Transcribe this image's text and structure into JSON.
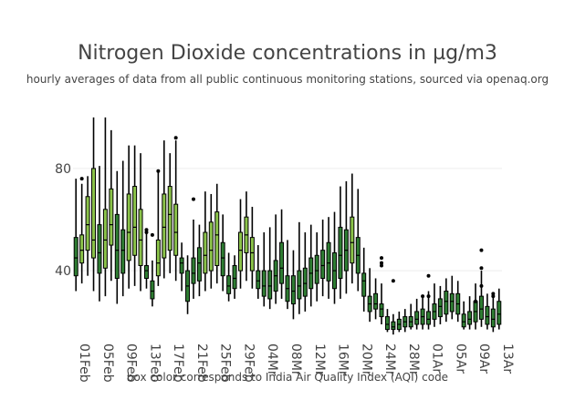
{
  "chart_data": {
    "type": "box",
    "title": "Nitrogen Dioxide concentrations in µg/m3",
    "subtitle": "hourly averages of data from all public continuous monitoring stations, sourced via openaq.org",
    "xlabel": "box color corresponds to India Air Quality Index (AQI) code",
    "ylabel": "",
    "ylim": [
      14,
      106
    ],
    "yticks": [
      40,
      80
    ],
    "xticks": [
      "01Feb",
      "05Feb",
      "09Feb",
      "13Feb",
      "17Feb",
      "21Feb",
      "25Feb",
      "29Feb",
      "04Mar",
      "08Mar",
      "12Mar",
      "16Mar",
      "20Mar",
      "24Mar",
      "28Mar",
      "01Apr",
      "05Apr",
      "09Apr",
      "13Apr"
    ],
    "tick_labels": [
      "01Feb",
      "05Feb",
      "09Feb",
      "13Feb",
      "17Feb",
      "21Feb",
      "25Feb",
      "29Feb",
      "04Mr",
      "08Mr",
      "12Mr",
      "16Mr",
      "20Mr",
      "24Mr",
      "28Mr",
      "01Ar",
      "05Ar",
      "09Ar",
      "13Ar"
    ],
    "colors": {
      "good": "#2e7d32",
      "satisfactory": "#8bc34a",
      "whisker": "#000000",
      "grid": "#eeeeee"
    },
    "series": [
      {
        "date": "01Feb",
        "min": 32,
        "q1": 38,
        "median": 45,
        "q3": 53,
        "max": 76,
        "aqi": "good"
      },
      {
        "date": "02Feb",
        "min": 35,
        "q1": 43,
        "median": 48,
        "q3": 54,
        "max": 74,
        "aqi": "satisfactory"
      },
      {
        "date": "03Feb",
        "min": 38,
        "q1": 48,
        "median": 58,
        "q3": 69,
        "max": 77,
        "aqi": "satisfactory"
      },
      {
        "date": "04Feb",
        "min": 32,
        "q1": 45,
        "median": 52,
        "q3": 80,
        "max": 100,
        "aqi": "satisfactory"
      },
      {
        "date": "05Feb",
        "min": 28,
        "q1": 39,
        "median": 47,
        "q3": 58,
        "max": 81,
        "aqi": "good"
      },
      {
        "date": "06Feb",
        "min": 30,
        "q1": 41,
        "median": 52,
        "q3": 64,
        "max": 100,
        "aqi": "satisfactory"
      },
      {
        "date": "07Feb",
        "min": 36,
        "q1": 50,
        "median": 58,
        "q3": 72,
        "max": 95,
        "aqi": "satisfactory"
      },
      {
        "date": "08Feb",
        "min": 27,
        "q1": 37,
        "median": 48,
        "q3": 62,
        "max": 79,
        "aqi": "good"
      },
      {
        "date": "09Feb",
        "min": 30,
        "q1": 39,
        "median": 48,
        "q3": 56,
        "max": 83,
        "aqi": "good"
      },
      {
        "date": "10Feb",
        "min": 33,
        "q1": 44,
        "median": 55,
        "q3": 70,
        "max": 89,
        "aqi": "satisfactory"
      },
      {
        "date": "11Feb",
        "min": 34,
        "q1": 46,
        "median": 57,
        "q3": 73,
        "max": 89,
        "aqi": "satisfactory"
      },
      {
        "date": "12Feb",
        "min": 32,
        "q1": 42,
        "median": 52,
        "q3": 64,
        "max": 86,
        "aqi": "satisfactory"
      },
      {
        "date": "13Feb",
        "min": 33,
        "q1": 37,
        "median": 40,
        "q3": 42,
        "max": 55,
        "aqi": "good"
      },
      {
        "date": "14Feb",
        "min": 26,
        "q1": 29,
        "median": 32,
        "q3": 36,
        "max": 44,
        "aqi": "good"
      },
      {
        "date": "15Feb",
        "min": 34,
        "q1": 38,
        "median": 43,
        "q3": 52,
        "max": 79,
        "aqi": "satisfactory"
      },
      {
        "date": "16Feb",
        "min": 37,
        "q1": 45,
        "median": 57,
        "q3": 70,
        "max": 91,
        "aqi": "satisfactory"
      },
      {
        "date": "17Feb",
        "min": 39,
        "q1": 48,
        "median": 62,
        "q3": 73,
        "max": 86,
        "aqi": "satisfactory"
      },
      {
        "date": "18Feb",
        "min": 36,
        "q1": 46,
        "median": 55,
        "q3": 66,
        "max": 91,
        "aqi": "satisfactory"
      },
      {
        "date": "19Feb",
        "min": 32,
        "q1": 39,
        "median": 43,
        "q3": 45,
        "max": 51,
        "aqi": "good"
      },
      {
        "date": "20Feb",
        "min": 23,
        "q1": 28,
        "median": 34,
        "q3": 40,
        "max": 46,
        "aqi": "good"
      },
      {
        "date": "21Feb",
        "min": 29,
        "q1": 35,
        "median": 39,
        "q3": 45,
        "max": 60,
        "aqi": "good"
      },
      {
        "date": "22Feb",
        "min": 30,
        "q1": 36,
        "median": 43,
        "q3": 49,
        "max": 58,
        "aqi": "good"
      },
      {
        "date": "23Feb",
        "min": 32,
        "q1": 39,
        "median": 46,
        "q3": 55,
        "max": 71,
        "aqi": "satisfactory"
      },
      {
        "date": "24Feb",
        "min": 33,
        "q1": 40,
        "median": 48,
        "q3": 59,
        "max": 70,
        "aqi": "satisfactory"
      },
      {
        "date": "25Feb",
        "min": 35,
        "q1": 42,
        "median": 54,
        "q3": 63,
        "max": 74,
        "aqi": "satisfactory"
      },
      {
        "date": "26Feb",
        "min": 32,
        "q1": 38,
        "median": 45,
        "q3": 51,
        "max": 62,
        "aqi": "good"
      },
      {
        "date": "27Feb",
        "min": 28,
        "q1": 31,
        "median": 34,
        "q3": 38,
        "max": 47,
        "aqi": "good"
      },
      {
        "date": "28Feb",
        "min": 29,
        "q1": 33,
        "median": 37,
        "q3": 42,
        "max": 46,
        "aqi": "good"
      },
      {
        "date": "29Feb",
        "min": 33,
        "q1": 40,
        "median": 48,
        "q3": 55,
        "max": 68,
        "aqi": "satisfactory"
      },
      {
        "date": "01Mar",
        "min": 36,
        "q1": 47,
        "median": 54,
        "q3": 61,
        "max": 71,
        "aqi": "satisfactory"
      },
      {
        "date": "02Mar",
        "min": 33,
        "q1": 40,
        "median": 47,
        "q3": 53,
        "max": 65,
        "aqi": "satisfactory"
      },
      {
        "date": "03Mar",
        "min": 29,
        "q1": 33,
        "median": 36,
        "q3": 40,
        "max": 50,
        "aqi": "good"
      },
      {
        "date": "04Mar",
        "min": 26,
        "q1": 30,
        "median": 34,
        "q3": 40,
        "max": 55,
        "aqi": "good"
      },
      {
        "date": "05Mar",
        "min": 25,
        "q1": 29,
        "median": 34,
        "q3": 40,
        "max": 57,
        "aqi": "good"
      },
      {
        "date": "06Mar",
        "min": 27,
        "q1": 32,
        "median": 38,
        "q3": 44,
        "max": 62,
        "aqi": "good"
      },
      {
        "date": "07Mar",
        "min": 29,
        "q1": 35,
        "median": 41,
        "q3": 51,
        "max": 64,
        "aqi": "good"
      },
      {
        "date": "08Mar",
        "min": 25,
        "q1": 28,
        "median": 33,
        "q3": 38,
        "max": 52,
        "aqi": "good"
      },
      {
        "date": "09Mar",
        "min": 21,
        "q1": 27,
        "median": 32,
        "q3": 38,
        "max": 48,
        "aqi": "good"
      },
      {
        "date": "10Mar",
        "min": 23,
        "q1": 29,
        "median": 34,
        "q3": 40,
        "max": 59,
        "aqi": "good"
      },
      {
        "date": "11Mar",
        "min": 24,
        "q1": 30,
        "median": 35,
        "q3": 41,
        "max": 55,
        "aqi": "good"
      },
      {
        "date": "12Mar",
        "min": 26,
        "q1": 33,
        "median": 39,
        "q3": 45,
        "max": 58,
        "aqi": "good"
      },
      {
        "date": "13Mar",
        "min": 28,
        "q1": 35,
        "median": 40,
        "q3": 46,
        "max": 55,
        "aqi": "good"
      },
      {
        "date": "14Mar",
        "min": 30,
        "q1": 37,
        "median": 42,
        "q3": 48,
        "max": 60,
        "aqi": "good"
      },
      {
        "date": "15Mar",
        "min": 29,
        "q1": 36,
        "median": 43,
        "q3": 51,
        "max": 61,
        "aqi": "good"
      },
      {
        "date": "16Mar",
        "min": 27,
        "q1": 33,
        "median": 40,
        "q3": 47,
        "max": 63,
        "aqi": "good"
      },
      {
        "date": "17Mar",
        "min": 29,
        "q1": 37,
        "median": 46,
        "q3": 57,
        "max": 73,
        "aqi": "good"
      },
      {
        "date": "18Mar",
        "min": 31,
        "q1": 40,
        "median": 48,
        "q3": 56,
        "max": 75,
        "aqi": "good"
      },
      {
        "date": "19Mar",
        "min": 35,
        "q1": 43,
        "median": 51,
        "q3": 61,
        "max": 78,
        "aqi": "satisfactory"
      },
      {
        "date": "20Mar",
        "min": 32,
        "q1": 39,
        "median": 46,
        "q3": 53,
        "max": 72,
        "aqi": "good"
      },
      {
        "date": "21Mar",
        "min": 24,
        "q1": 30,
        "median": 36,
        "q3": 39,
        "max": 49,
        "aqi": "good"
      },
      {
        "date": "22Mar",
        "min": 20,
        "q1": 24,
        "median": 27,
        "q3": 30,
        "max": 41,
        "aqi": "good"
      },
      {
        "date": "23Mar",
        "min": 21,
        "q1": 25,
        "median": 27,
        "q3": 31,
        "max": 37,
        "aqi": "good"
      },
      {
        "date": "24Mar",
        "min": 19,
        "q1": 22,
        "median": 25,
        "q3": 27,
        "max": 35,
        "aqi": "good"
      },
      {
        "date": "25Mar",
        "min": 16,
        "q1": 17,
        "median": 19,
        "q3": 22,
        "max": 25,
        "aqi": "good"
      },
      {
        "date": "26Mar",
        "min": 15,
        "q1": 17,
        "median": 18,
        "q3": 20,
        "max": 23,
        "aqi": "good"
      },
      {
        "date": "27Mar",
        "min": 16,
        "q1": 17,
        "median": 19,
        "q3": 21,
        "max": 24,
        "aqi": "good"
      },
      {
        "date": "28Mar",
        "min": 16,
        "q1": 18,
        "median": 20,
        "q3": 22,
        "max": 25,
        "aqi": "good"
      },
      {
        "date": "29Mar",
        "min": 17,
        "q1": 18,
        "median": 20,
        "q3": 22,
        "max": 27,
        "aqi": "good"
      },
      {
        "date": "30Mar",
        "min": 17,
        "q1": 19,
        "median": 21,
        "q3": 24,
        "max": 29,
        "aqi": "good"
      },
      {
        "date": "31Mar",
        "min": 17,
        "q1": 19,
        "median": 22,
        "q3": 25,
        "max": 30,
        "aqi": "good"
      },
      {
        "date": "01Apr",
        "min": 17,
        "q1": 19,
        "median": 21,
        "q3": 24,
        "max": 32,
        "aqi": "good"
      },
      {
        "date": "02Apr",
        "min": 18,
        "q1": 21,
        "median": 24,
        "q3": 27,
        "max": 35,
        "aqi": "good"
      },
      {
        "date": "03Apr",
        "min": 19,
        "q1": 22,
        "median": 26,
        "q3": 29,
        "max": 34,
        "aqi": "good"
      },
      {
        "date": "04Apr",
        "min": 20,
        "q1": 23,
        "median": 28,
        "q3": 32,
        "max": 37,
        "aqi": "good"
      },
      {
        "date": "05Apr",
        "min": 21,
        "q1": 24,
        "median": 28,
        "q3": 31,
        "max": 38,
        "aqi": "good"
      },
      {
        "date": "06Apr",
        "min": 20,
        "q1": 23,
        "median": 27,
        "q3": 31,
        "max": 36,
        "aqi": "good"
      },
      {
        "date": "07Apr",
        "min": 17,
        "q1": 18,
        "median": 20,
        "q3": 23,
        "max": 28,
        "aqi": "good"
      },
      {
        "date": "08Apr",
        "min": 17,
        "q1": 19,
        "median": 21,
        "q3": 24,
        "max": 30,
        "aqi": "good"
      },
      {
        "date": "09Apr",
        "min": 17,
        "q1": 20,
        "median": 24,
        "q3": 28,
        "max": 35,
        "aqi": "good"
      },
      {
        "date": "10Apr",
        "min": 18,
        "q1": 21,
        "median": 25,
        "q3": 30,
        "max": 40,
        "aqi": "good"
      },
      {
        "date": "11Apr",
        "min": 17,
        "q1": 19,
        "median": 22,
        "q3": 26,
        "max": 31,
        "aqi": "good"
      },
      {
        "date": "12Apr",
        "min": 16,
        "q1": 18,
        "median": 21,
        "q3": 25,
        "max": 30,
        "aqi": "good"
      },
      {
        "date": "13Apr",
        "min": 17,
        "q1": 19,
        "median": 23,
        "q3": 28,
        "max": 33,
        "aqi": "good"
      }
    ],
    "outliers": [
      {
        "date": "02Feb",
        "value": 76
      },
      {
        "date": "15Feb",
        "value": 79
      },
      {
        "date": "18Feb",
        "value": 92
      },
      {
        "date": "13Feb",
        "value": 55
      },
      {
        "date": "13Feb",
        "value": 56
      },
      {
        "date": "14Feb",
        "value": 54
      },
      {
        "date": "21Feb",
        "value": 68
      },
      {
        "date": "24Mar",
        "value": 45
      },
      {
        "date": "24Mar",
        "value": 43
      },
      {
        "date": "24Mar",
        "value": 42
      },
      {
        "date": "26Mar",
        "value": 36
      },
      {
        "date": "01Apr",
        "value": 38
      },
      {
        "date": "01Apr",
        "value": 30
      },
      {
        "date": "31Mar",
        "value": 30
      },
      {
        "date": "09Apr",
        "value": 28
      },
      {
        "date": "10Apr",
        "value": 48
      },
      {
        "date": "10Apr",
        "value": 41
      },
      {
        "date": "10Apr",
        "value": 34
      },
      {
        "date": "12Apr",
        "value": 31
      },
      {
        "date": "12Apr",
        "value": 30
      }
    ]
  }
}
